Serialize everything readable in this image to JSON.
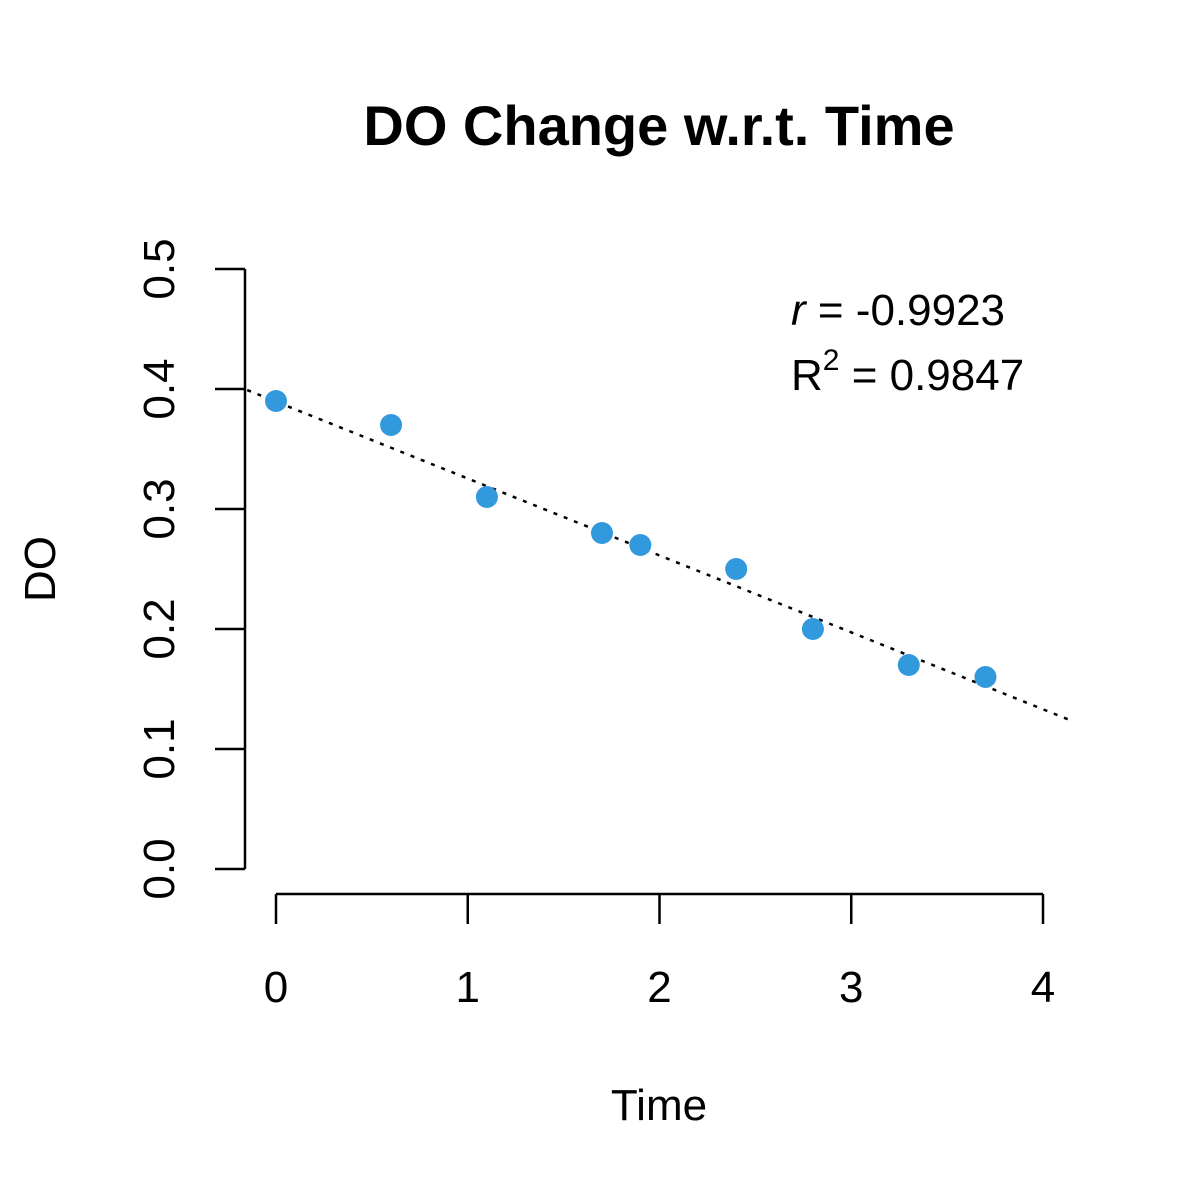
{
  "chart_data": {
    "type": "scatter",
    "title": "DO Change w.r.t. Time",
    "xlabel": "Time",
    "ylabel": "DO",
    "xlim": [
      0,
      4
    ],
    "ylim": [
      0,
      0.5
    ],
    "x_ticks": [
      "0",
      "1",
      "2",
      "3",
      "4"
    ],
    "y_ticks": [
      "0.0",
      "0.1",
      "0.2",
      "0.3",
      "0.4",
      "0.5"
    ],
    "x": [
      0,
      0.6,
      1.1,
      1.7,
      1.9,
      2.4,
      2.8,
      3.3,
      3.7
    ],
    "y": [
      0.39,
      0.37,
      0.31,
      0.28,
      0.27,
      0.25,
      0.2,
      0.17,
      0.16
    ],
    "point_color": "#3399dd",
    "fit_line": {
      "style": "dotted",
      "color": "#000000",
      "intercept": 0.3895,
      "slope": -0.0641
    },
    "annotations": {
      "r_symbol": "r",
      "r_value": " = -0.9923",
      "r2_symbol": "R",
      "r2_superscript": "2",
      "r2_value": " = 0.9847"
    },
    "grid": false,
    "legend": "none"
  }
}
